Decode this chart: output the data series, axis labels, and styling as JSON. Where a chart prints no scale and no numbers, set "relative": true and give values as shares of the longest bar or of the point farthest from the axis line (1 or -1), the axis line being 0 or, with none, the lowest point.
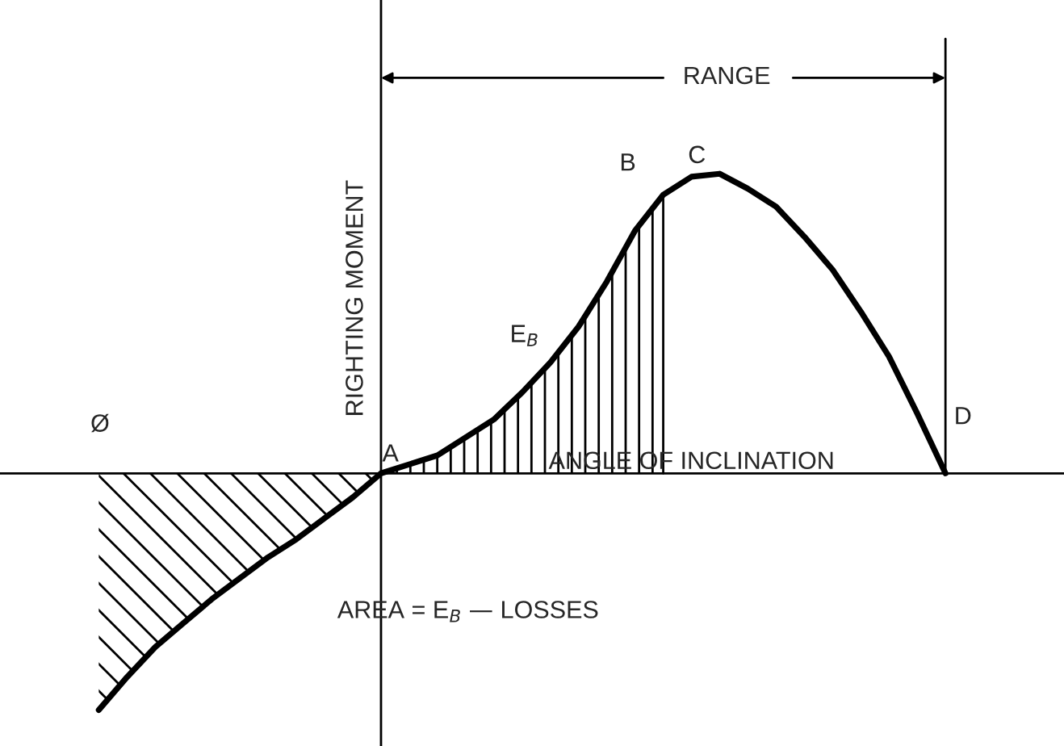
{
  "chart_data": {
    "type": "line",
    "relative": true,
    "xlabel": "ANGLE OF INCLINATION",
    "ylabel": "RIGHTING MOMENT",
    "categories": [
      null,
      null,
      null,
      null,
      null,
      null,
      null,
      null,
      null,
      null,
      null,
      null,
      null,
      null,
      null,
      null,
      null,
      null,
      null,
      null,
      null,
      null,
      null,
      null,
      null,
      null,
      null,
      null,
      null,
      null,
      null
    ],
    "series": [
      {
        "color": "#000000",
        "values": [
          -0.79,
          -0.68,
          -0.58,
          -0.5,
          -0.42,
          -0.35,
          -0.28,
          -0.22,
          -0.15,
          -0.08,
          0,
          0.03,
          0.06,
          0.12,
          0.18,
          0.27,
          0.37,
          0.49,
          0.64,
          0.81,
          0.93,
          0.99,
          1.0,
          0.95,
          0.89,
          0.79,
          0.68,
          0.54,
          0.39,
          0.2,
          0
        ]
      }
    ],
    "annotations": [
      "Ø",
      "A",
      "B",
      "C",
      "D",
      "E$_{B}$",
      "RANGE",
      "AREA = E$_{B}$ — LOSSES"
    ],
    "legend": false,
    "marker": "none",
    "line_style": "solid"
  }
}
